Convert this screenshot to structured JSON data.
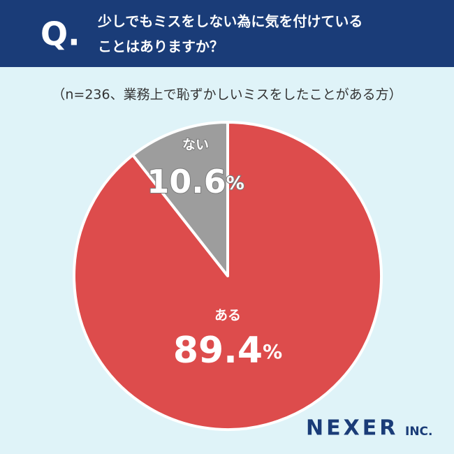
{
  "chart_data": {
    "type": "pie",
    "title_prefix": "Q.",
    "title": [
      "少しでもミスをしない為に気を付けている",
      "ことはありますか？"
    ],
    "subtitle": "（n=236、業務上で恥ずかしいミスをしたことがある方）",
    "categories": [
      "ある",
      "ない"
    ],
    "values": [
      89.4,
      10.6
    ],
    "value_labels": [
      "89.4%",
      "10.6%"
    ],
    "colors": [
      "#dd4c4c",
      "#9d9d9d"
    ],
    "start": "top",
    "direction": "clockwise",
    "logo": [
      "NEXER",
      "INC."
    ]
  }
}
